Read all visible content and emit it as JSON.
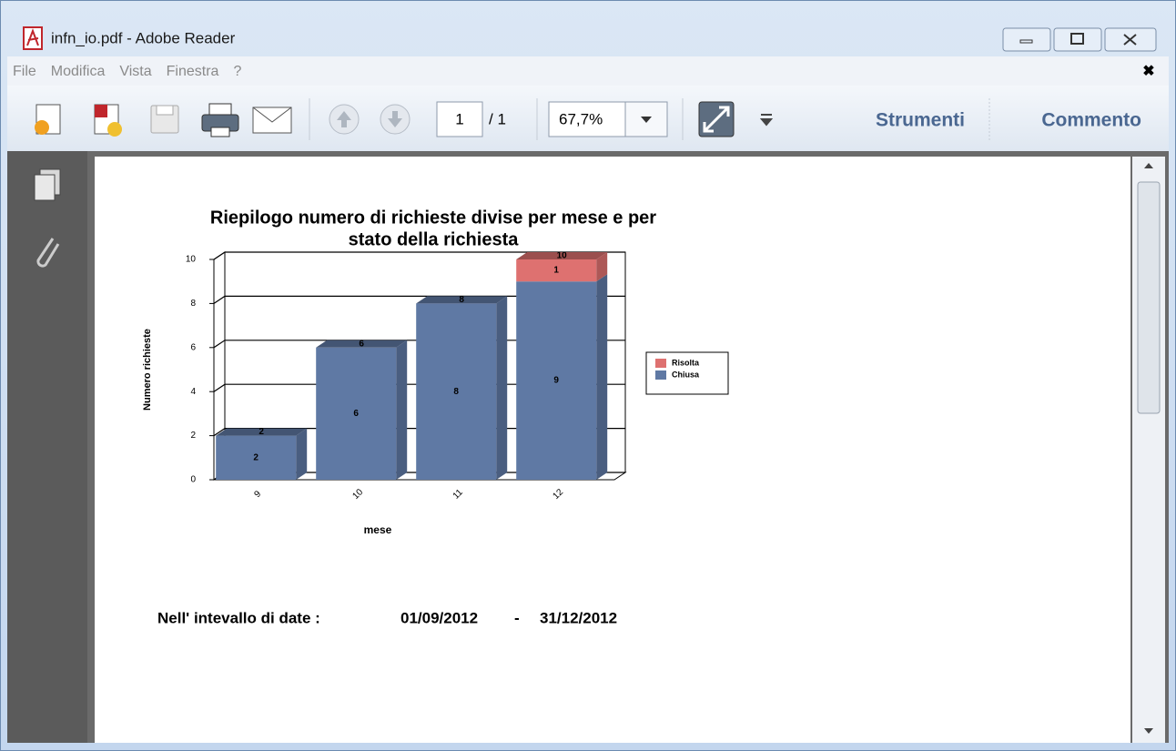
{
  "window": {
    "title": "infn_io.pdf - Adobe Reader"
  },
  "menu": [
    "File",
    "Modifica",
    "Vista",
    "Finestra",
    "?"
  ],
  "toolbar": {
    "page": "1",
    "page_total": "/ 1",
    "zoom": "67,7%",
    "tools": "Strumenti",
    "comment": "Commento"
  },
  "chart_data": {
    "type": "bar",
    "stacked": true,
    "title": [
      "Riepilogo numero di richieste divise per mese e per",
      "stato della richiesta"
    ],
    "x_label": "mese",
    "y_label": "Numero richieste",
    "categories": [
      "9",
      "10",
      "11",
      "12"
    ],
    "series": [
      {
        "name": "Chiusa",
        "color": "#5f79a4",
        "values": [
          2,
          6,
          8,
          9
        ]
      },
      {
        "name": "Risolta",
        "color": "#de7170",
        "values": [
          null,
          null,
          null,
          1
        ]
      }
    ],
    "totals": [
      2,
      6,
      8,
      10
    ],
    "ylim": [
      0,
      10
    ],
    "yticks": [
      0,
      2,
      4,
      6,
      8,
      10
    ],
    "grid": true,
    "legend": "right"
  },
  "footer": {
    "label": "Nell' intevallo di date :",
    "from": "01/09/2012",
    "separator": "-",
    "to": "31/12/2012"
  }
}
